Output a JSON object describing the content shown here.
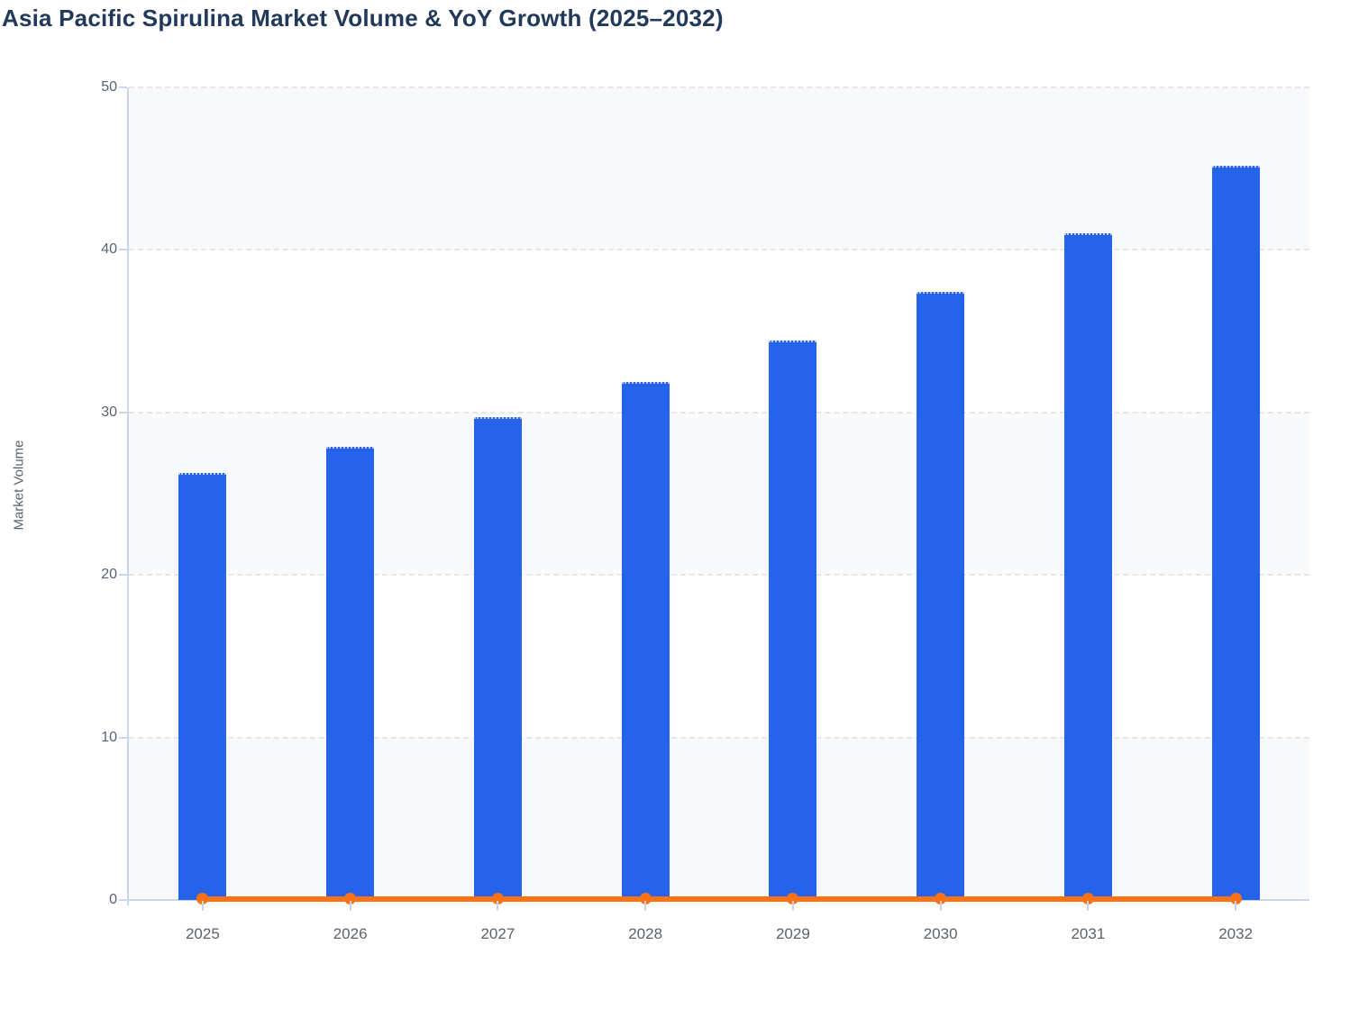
{
  "title": "Asia Pacific Spirulina Market Volume & YoY Growth (2025–2032)",
  "colors": {
    "bar": "#2563eb",
    "line": "#f97316",
    "title_text": "#21395a",
    "axis_text": "#5a6270",
    "axis_line": "#cad4ef",
    "gridline": "#e7e7ea",
    "band_fill": "#f8f9fb",
    "band_fill_alt": "#ffffff"
  },
  "chart_data": {
    "type": "bar",
    "combo": "bar + line overlay",
    "title": "Asia Pacific Spirulina Market Volume & YoY Growth (2025–2032)",
    "categories": [
      "2025",
      "2026",
      "2027",
      "2028",
      "2029",
      "2030",
      "2031",
      "2032"
    ],
    "series": [
      {
        "name": "Market Volume",
        "type": "bar",
        "color": "#2563eb",
        "values": [
          26.3,
          27.9,
          29.7,
          31.9,
          34.4,
          37.4,
          41.0,
          45.2
        ]
      },
      {
        "name": "YoY Growth",
        "type": "line",
        "color": "#f97316",
        "values": [
          0.06,
          0.06,
          0.07,
          0.07,
          0.08,
          0.09,
          0.1,
          0.1
        ],
        "note": "plotted on the same 0–50 axis, appears as a flat line just above 0 with a round marker at every year"
      }
    ],
    "xlabel": "",
    "ylabel": "Market Volume",
    "yticks": [
      0,
      10,
      20,
      30,
      40,
      50
    ],
    "ylim": [
      0,
      50
    ],
    "grid": "horizontal dashed gridlines at each y tick",
    "legend": "none",
    "plot_background": "alternating horizontal bands: light #f8f9fb on 40–50, 20–30, 0–10; white on 30–40, 10–20"
  }
}
